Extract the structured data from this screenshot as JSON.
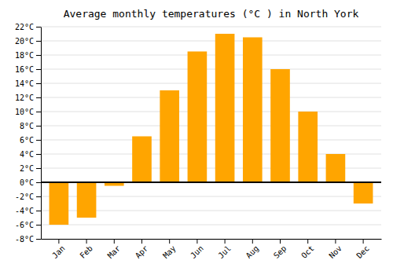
{
  "chart_data": {
    "type": "bar",
    "title": "Average monthly temperatures (°C ) in North York",
    "categories": [
      "Jan",
      "Feb",
      "Mar",
      "Apr",
      "May",
      "Jun",
      "Jul",
      "Aug",
      "Sep",
      "Oct",
      "Nov",
      "Dec"
    ],
    "values": [
      -6,
      -5,
      -0.5,
      6.5,
      13,
      18.5,
      21,
      20.5,
      16,
      10,
      4,
      -3
    ],
    "color": "#FFA500",
    "ylim": [
      -8,
      22
    ],
    "yticks": [
      {
        "value": -8,
        "label": "-8°C"
      },
      {
        "value": -6,
        "label": "-6°C"
      },
      {
        "value": -4,
        "label": "-4°C"
      },
      {
        "value": -2,
        "label": "-2°C"
      },
      {
        "value": 0,
        "label": "0°C"
      },
      {
        "value": 2,
        "label": "2°C"
      },
      {
        "value": 4,
        "label": "4°C"
      },
      {
        "value": 6,
        "label": "6°C"
      },
      {
        "value": 8,
        "label": "8°C"
      },
      {
        "value": 10,
        "label": "10°C"
      },
      {
        "value": 12,
        "label": "12°C"
      },
      {
        "value": 14,
        "label": "14°C"
      },
      {
        "value": 16,
        "label": "16°C"
      },
      {
        "value": 18,
        "label": "18°C"
      },
      {
        "value": 20,
        "label": "20°C"
      },
      {
        "value": 22,
        "label": "22°C"
      }
    ],
    "grid": true
  }
}
